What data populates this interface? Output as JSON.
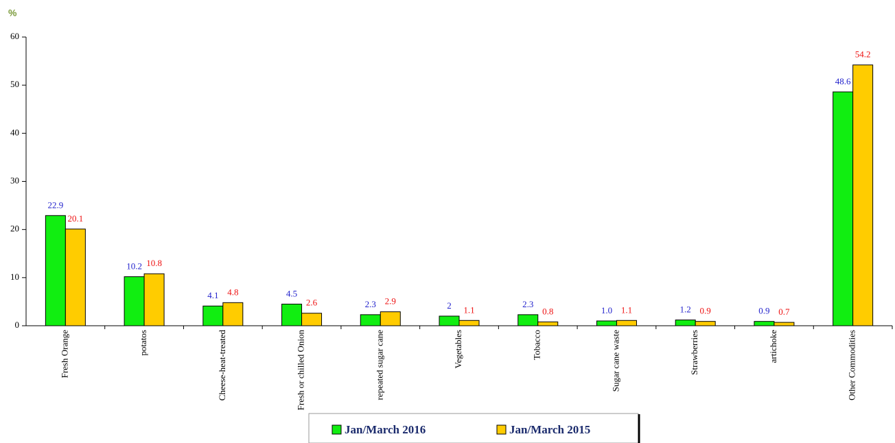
{
  "chart_data": {
    "type": "bar",
    "y_label": "%",
    "categories": [
      "Fresh Orange",
      "potatos",
      "Cheese-heat-treated",
      "Fresh or chilled Onion",
      "repeated sugar cane",
      "Vegetables",
      "Tobacco",
      "Sugar cane waste",
      "Strawberries",
      "artichoke",
      "Other Commodities"
    ],
    "series": [
      {
        "name": "Jan/March 2016",
        "color": "#11ee11",
        "label_color": "#2222cc",
        "values": [
          22.9,
          10.2,
          4.1,
          4.5,
          2.3,
          2,
          2.3,
          1,
          1.2,
          0.9,
          48.6
        ],
        "value_labels": [
          "22.9",
          "10.2",
          "4.1",
          "4.5",
          "2.3",
          "2",
          "2.3",
          "1.0",
          "1.2",
          "0.9",
          "48.6"
        ]
      },
      {
        "name": "Jan/March 2015",
        "color": "#ffcc00",
        "label_color": "#ee1111",
        "values": [
          20.1,
          10.8,
          4.8,
          2.6,
          2.9,
          1.1,
          0.8,
          1.1,
          0.9,
          0.7,
          54.2
        ]
      }
    ],
    "ylim": [
      0,
      60
    ],
    "yticks": [
      0,
      10,
      20,
      30,
      40,
      50,
      60
    ]
  }
}
